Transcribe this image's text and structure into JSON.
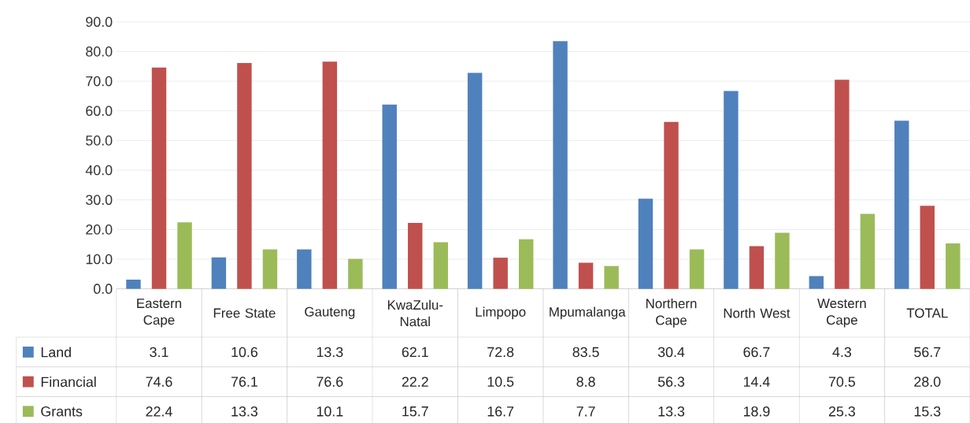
{
  "chart_data": {
    "type": "bar",
    "categories": [
      "Eastern Cape",
      "Free State",
      "Gauteng",
      "KwaZulu-Natal",
      "Limpopo",
      "Mpumalanga",
      "Northern Cape",
      "North West",
      "Western Cape",
      "TOTAL"
    ],
    "series": [
      {
        "name": "Land",
        "color": "#4f81bd",
        "values": [
          3.1,
          10.6,
          13.3,
          62.1,
          72.8,
          83.5,
          30.4,
          66.7,
          4.3,
          56.7
        ],
        "value_labels": [
          "3.1",
          "10.6",
          "13.3",
          "62.1",
          "72.8",
          "83.5",
          "30.4",
          "66.7",
          "4.3",
          "56.7"
        ]
      },
      {
        "name": "Financial",
        "color": "#c0504d",
        "values": [
          74.6,
          76.1,
          76.6,
          22.2,
          10.5,
          8.8,
          56.3,
          14.4,
          70.5,
          28.0
        ],
        "value_labels": [
          "74.6",
          "76.1",
          "76.6",
          "22.2",
          "10.5",
          "8.8",
          "56.3",
          "14.4",
          "70.5",
          "28.0"
        ]
      },
      {
        "name": "Grants",
        "color": "#9bbb59",
        "values": [
          22.4,
          13.3,
          10.1,
          15.7,
          16.7,
          7.7,
          13.3,
          18.9,
          25.3,
          15.3
        ],
        "value_labels": [
          "22.4",
          "13.3",
          "10.1",
          "15.7",
          "16.7",
          "7.7",
          "13.3",
          "18.9",
          "25.3",
          "15.3"
        ]
      }
    ],
    "ylim": [
      0,
      90
    ],
    "yticks": [
      {
        "value": 0,
        "label": "0.0"
      },
      {
        "value": 10,
        "label": "10.0"
      },
      {
        "value": 20,
        "label": "20.0"
      },
      {
        "value": 30,
        "label": "30.0"
      },
      {
        "value": 40,
        "label": "40.0"
      },
      {
        "value": 50,
        "label": "50.0"
      },
      {
        "value": 60,
        "label": "60.0"
      },
      {
        "value": 70,
        "label": "70.0"
      },
      {
        "value": 80,
        "label": "80.0"
      },
      {
        "value": 90,
        "label": "90.0"
      }
    ],
    "grid": "y",
    "legend": "bottom left"
  }
}
